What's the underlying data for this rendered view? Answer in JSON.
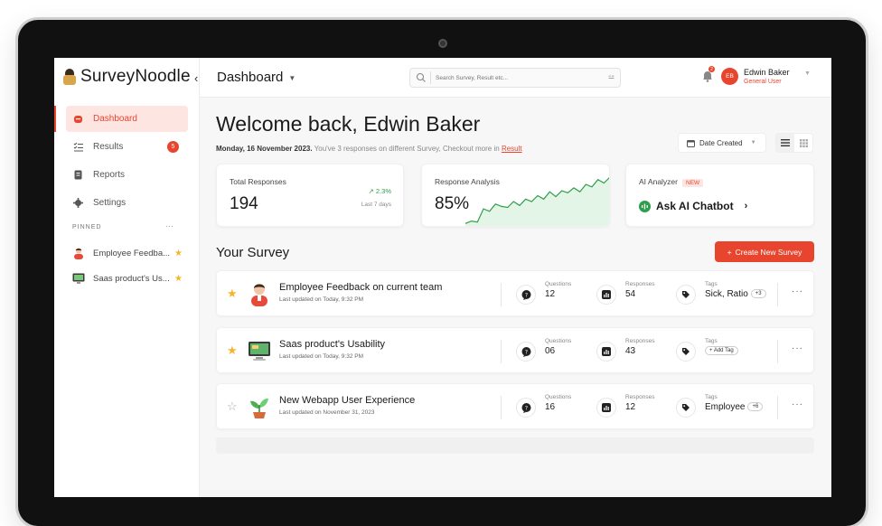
{
  "app": {
    "name": "SurveyNoodle"
  },
  "sidebar": {
    "items": [
      {
        "label": "Dashboard",
        "active": true
      },
      {
        "label": "Results",
        "badge": "5"
      },
      {
        "label": "Reports"
      },
      {
        "label": "Settings"
      }
    ],
    "pinned_title": "PINNED",
    "pinned_more": "···",
    "pinned": [
      {
        "label": "Employee Feedba..."
      },
      {
        "label": "Saas product's Us..."
      }
    ]
  },
  "header": {
    "title": "Dashboard",
    "search_placeholder": "Search Survey, Result etc...",
    "notification_count": "2",
    "user": {
      "initials": "EB",
      "name": "Edwin Baker",
      "role": "General User"
    }
  },
  "main": {
    "welcome": "Welcome back, Edwin Baker",
    "date": "Monday, 16 November 2023.",
    "message": "You've 3 responses on different Survey, Checkout more in",
    "result_link": "Result",
    "sort_label": "Date Created"
  },
  "cards": {
    "total": {
      "label": "Total Responses",
      "value": "194",
      "trend": "2.3%",
      "period": "Last 7 days"
    },
    "analysis": {
      "label": "Response Analysis",
      "value": "85%",
      "sparkline": [
        0.05,
        0.1,
        0.08,
        0.35,
        0.3,
        0.45,
        0.4,
        0.38,
        0.5,
        0.42,
        0.55,
        0.5,
        0.62,
        0.55,
        0.7,
        0.6,
        0.72,
        0.68,
        0.78,
        0.7,
        0.85,
        0.8,
        0.95,
        0.88,
        1.0
      ]
    },
    "ai": {
      "label": "AI Analyzer",
      "new_tag": "NEW",
      "cta": "Ask AI Chatbot"
    }
  },
  "surveys_section": {
    "title": "Your Survey",
    "create_button": "Create New Survey"
  },
  "surveys": [
    {
      "starred": true,
      "icon": "person-emoji",
      "title": "Employee Feedback on current team",
      "updated": "Last updated on Today, 9:32 PM",
      "questions_label": "Questions",
      "questions": "12",
      "responses_label": "Responses",
      "responses": "54",
      "tags_label": "Tags",
      "tags": "Sick, Ratio",
      "tag_extra": "+3"
    },
    {
      "starred": true,
      "icon": "monitor-emoji",
      "title": "Saas product's Usability",
      "updated": "Last updated on Today, 9:32 PM",
      "questions_label": "Questions",
      "questions": "06",
      "responses_label": "Responses",
      "responses": "43",
      "tags_label": "Tags",
      "tags": "",
      "tag_extra": "+ Add Tag"
    },
    {
      "starred": false,
      "icon": "plant-emoji",
      "title": "New Webapp User Experience",
      "updated": "Last updated on November 31, 2023",
      "questions_label": "Questions",
      "questions": "16",
      "responses_label": "Responses",
      "responses": "12",
      "tags_label": "Tags",
      "tags": "Employee",
      "tag_extra": "+6"
    }
  ],
  "colors": {
    "accent": "#e8452e",
    "positive": "#2e9e4b",
    "star": "#f5b42a"
  }
}
